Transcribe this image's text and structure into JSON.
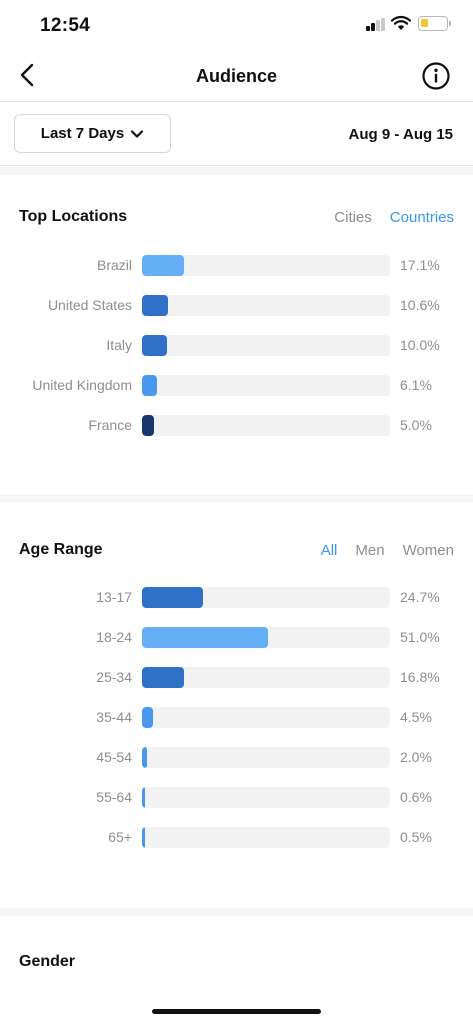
{
  "status_bar": {
    "time": "12:54"
  },
  "nav": {
    "title": "Audience"
  },
  "period": {
    "selected": "Last 7 Days",
    "date_range": "Aug 9 - Aug 15"
  },
  "top_locations": {
    "title": "Top Locations",
    "tabs": [
      {
        "label": "Cities",
        "active": false
      },
      {
        "label": "Countries",
        "active": true
      }
    ],
    "rows": [
      {
        "label": "Brazil",
        "value": 17.1,
        "value_text": "17.1%",
        "color": "#64aff5"
      },
      {
        "label": "United States",
        "value": 10.6,
        "value_text": "10.6%",
        "color": "#2f70c9"
      },
      {
        "label": "Italy",
        "value": 10.0,
        "value_text": "10.0%",
        "color": "#2f70c9"
      },
      {
        "label": "United Kingdom",
        "value": 6.1,
        "value_text": "6.1%",
        "color": "#4a97ee"
      },
      {
        "label": "France",
        "value": 5.0,
        "value_text": "5.0%",
        "color": "#17366b"
      }
    ]
  },
  "age_range": {
    "title": "Age Range",
    "tabs": [
      {
        "label": "All",
        "active": true
      },
      {
        "label": "Men",
        "active": false
      },
      {
        "label": "Women",
        "active": false
      }
    ],
    "rows": [
      {
        "label": "13-17",
        "value": 24.7,
        "value_text": "24.7%",
        "color": "#2f70c9"
      },
      {
        "label": "18-24",
        "value": 51.0,
        "value_text": "51.0%",
        "color": "#64aff5"
      },
      {
        "label": "25-34",
        "value": 16.8,
        "value_text": "16.8%",
        "color": "#2f70c9"
      },
      {
        "label": "35-44",
        "value": 4.5,
        "value_text": "4.5%",
        "color": "#4a97ee"
      },
      {
        "label": "45-54",
        "value": 2.0,
        "value_text": "2.0%",
        "color": "#4a97ee"
      },
      {
        "label": "55-64",
        "value": 0.6,
        "value_text": "0.6%",
        "color": "#4a97ee"
      },
      {
        "label": "65+",
        "value": 0.5,
        "value_text": "0.5%",
        "color": "#4a97ee"
      }
    ]
  },
  "gender": {
    "title": "Gender"
  },
  "colors": {
    "accent": "#3897f0",
    "muted": "#8e8e8e",
    "track": "#f2f2f2"
  }
}
